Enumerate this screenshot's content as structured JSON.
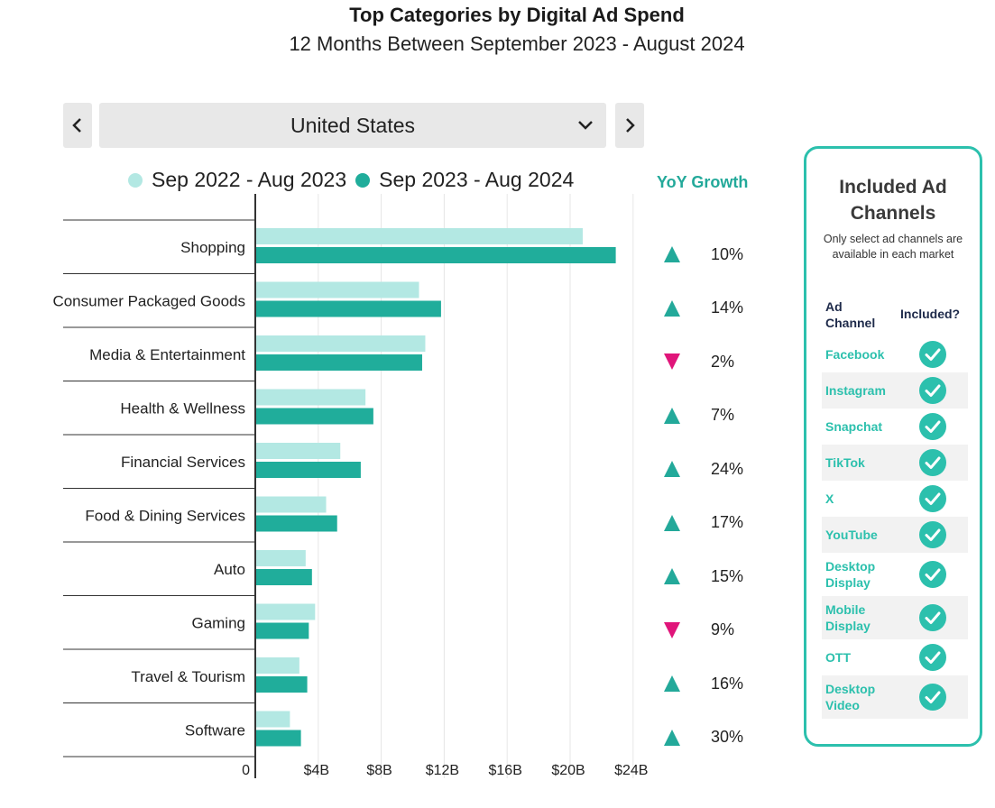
{
  "header": {
    "title": "Top Categories by Digital Ad Spend",
    "subtitle": "12 Months Between September 2023 - August 2024"
  },
  "selector": {
    "value": "United States",
    "prev_icon": "chevron-left-icon",
    "next_icon": "chevron-right-icon",
    "dropdown_icon": "chevron-down-icon"
  },
  "yoy": {
    "header": "YoY Growth",
    "up_color": "#23a99a",
    "down_color": "#e0157a"
  },
  "chart_data": {
    "type": "bar",
    "orientation": "horizontal",
    "categories": [
      "Shopping",
      "Consumer Packaged Goods",
      "Media & Entertainment",
      "Health & Wellness",
      "Financial Services",
      "Food & Dining Services",
      "Auto",
      "Gaming",
      "Travel & Tourism",
      "Software"
    ],
    "series": [
      {
        "name": "Sep 2022 - Aug 2023",
        "color": "#b3e8e3",
        "values": [
          20.8,
          10.4,
          10.8,
          7.0,
          5.4,
          4.5,
          3.2,
          3.8,
          2.8,
          2.2
        ]
      },
      {
        "name": "Sep 2023 - Aug 2024",
        "color": "#20ad9b",
        "values": [
          22.9,
          11.8,
          10.6,
          7.5,
          6.7,
          5.2,
          3.6,
          3.4,
          3.3,
          2.9
        ]
      }
    ],
    "yoy_growth": [
      {
        "direction": "up",
        "label": "10%"
      },
      {
        "direction": "up",
        "label": "14%"
      },
      {
        "direction": "down",
        "label": "2%"
      },
      {
        "direction": "up",
        "label": "7%"
      },
      {
        "direction": "up",
        "label": "24%"
      },
      {
        "direction": "up",
        "label": "17%"
      },
      {
        "direction": "up",
        "label": "15%"
      },
      {
        "direction": "down",
        "label": "9%"
      },
      {
        "direction": "up",
        "label": "16%"
      },
      {
        "direction": "up",
        "label": "30%"
      }
    ],
    "xlim": [
      0,
      24
    ],
    "x_ticks": [
      {
        "value": 0,
        "label": "0"
      },
      {
        "value": 4,
        "label": "$4B"
      },
      {
        "value": 8,
        "label": "$8B"
      },
      {
        "value": 12,
        "label": "$12B"
      },
      {
        "value": 16,
        "label": "$16B"
      },
      {
        "value": 20,
        "label": "$20B"
      },
      {
        "value": 24,
        "label": "$24B"
      }
    ],
    "grid": true,
    "legend_position": "top",
    "title": "Top Categories by Digital Ad Spend",
    "subtitle": "12 Months Between September 2023 - August 2024",
    "xlabel": "",
    "ylabel": ""
  },
  "panel": {
    "title_line1": "Included Ad",
    "title_line2": "Channels",
    "note_line1": "Only select ad channels are",
    "note_line2": "available in each market",
    "col_channel_line1": "Ad",
    "col_channel_line2": "Channel",
    "col_included": "Included?",
    "accent": "#2cc0ad",
    "check_icon": "check-circle-icon",
    "channels": [
      {
        "line1": "Facebook",
        "line2": "",
        "included": true
      },
      {
        "line1": "Instagram",
        "line2": "",
        "included": true
      },
      {
        "line1": "Snapchat",
        "line2": "",
        "included": true
      },
      {
        "line1": "TikTok",
        "line2": "",
        "included": true
      },
      {
        "line1": "X",
        "line2": "",
        "included": true
      },
      {
        "line1": "YouTube",
        "line2": "",
        "included": true
      },
      {
        "line1": "Desktop",
        "line2": "Display",
        "included": true
      },
      {
        "line1": "Mobile",
        "line2": "Display",
        "included": true
      },
      {
        "line1": "OTT",
        "line2": "",
        "included": true
      },
      {
        "line1": "Desktop",
        "line2": "Video",
        "included": true
      }
    ]
  }
}
